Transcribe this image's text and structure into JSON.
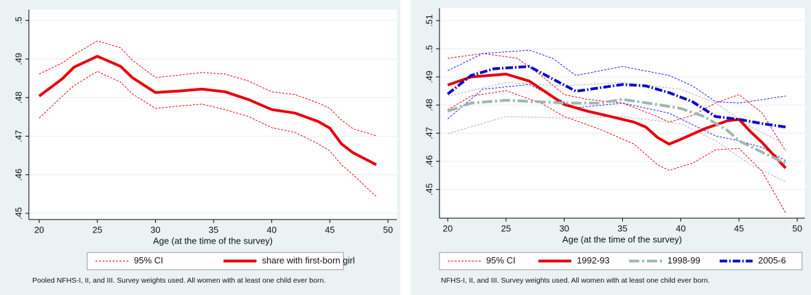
{
  "chart_data": [
    {
      "type": "line",
      "x_label": "Age (at the time of the survey)",
      "note": "Pooled NFHS-I, II, and III. Survey weights used. All women with at least one child ever born.",
      "ci_legend": "95% CI",
      "ci_color": "#e8000b",
      "xlim": [
        19.11,
        50.77
      ],
      "xticks": [
        20,
        25,
        30,
        35,
        40,
        45,
        50
      ],
      "ylim": [
        0.4484,
        0.5028
      ],
      "yticks": [
        {
          "value": 0.45,
          "label": ".45"
        },
        {
          "value": 0.46,
          "label": ".46"
        },
        {
          "value": 0.47,
          "label": ".47"
        },
        {
          "value": 0.48,
          "label": ".48"
        },
        {
          "value": 0.49,
          "label": ".49"
        },
        {
          "value": 0.5,
          "label": ".5"
        }
      ],
      "grid": true,
      "series": [
        {
          "role": "ci",
          "color": "#e8000b",
          "dash": "dashed",
          "x": [
            20,
            22,
            23,
            25,
            27,
            28,
            30,
            32,
            34,
            36,
            38,
            40,
            42,
            44,
            45,
            46,
            47,
            49
          ],
          "values": [
            0.4861,
            0.489,
            0.4911,
            0.4947,
            0.4929,
            0.4897,
            0.4852,
            0.4858,
            0.4865,
            0.4861,
            0.4843,
            0.4815,
            0.4808,
            0.4786,
            0.4772,
            0.4742,
            0.4719,
            0.4701
          ]
        },
        {
          "role": "ci",
          "color": "#e8000b",
          "dash": "dashed",
          "x": [
            20,
            22,
            23,
            25,
            27,
            28,
            30,
            32,
            34,
            36,
            38,
            40,
            42,
            44,
            45,
            46,
            47,
            49
          ],
          "values": [
            0.4747,
            0.4804,
            0.4831,
            0.4868,
            0.484,
            0.481,
            0.4772,
            0.4778,
            0.4783,
            0.4769,
            0.4751,
            0.4722,
            0.471,
            0.468,
            0.4662,
            0.4626,
            0.46,
            0.4543
          ]
        },
        {
          "role": "line",
          "name": "share with first-born girl",
          "color": "#e8000b",
          "dash": "solid",
          "x": [
            20,
            22,
            23,
            25,
            27,
            28,
            30,
            32,
            34,
            36,
            38,
            40,
            42,
            44,
            45,
            46,
            47,
            49
          ],
          "values": [
            0.4804,
            0.4849,
            0.4879,
            0.4907,
            0.4881,
            0.4852,
            0.4813,
            0.4817,
            0.4822,
            0.4815,
            0.4795,
            0.4769,
            0.476,
            0.4738,
            0.4721,
            0.468,
            0.4657,
            0.4626
          ]
        }
      ]
    },
    {
      "type": "line",
      "x_label": "Age (at the time of the survey)",
      "note": "NFHS-I, II, and III. Survey weights used. All women with at least one child ever born.",
      "ci_legend": "95% CI",
      "ci_color": "#e8000b",
      "xlim": [
        19.29,
        50.65
      ],
      "xticks": [
        20,
        25,
        30,
        35,
        40,
        45,
        50
      ],
      "ylim": [
        0.4398,
        0.5144
      ],
      "yticks": [
        {
          "value": 0.45,
          "label": ".45"
        },
        {
          "value": 0.46,
          "label": ".46"
        },
        {
          "value": 0.47,
          "label": ".47"
        },
        {
          "value": 0.48,
          "label": ".48"
        },
        {
          "value": 0.49,
          "label": ".49"
        },
        {
          "value": 0.5,
          "label": ".5"
        },
        {
          "value": 0.51,
          "label": ".51"
        }
      ],
      "grid": true,
      "series": [
        {
          "role": "ci",
          "color": "#e8000b",
          "dash": "dashed",
          "x": [
            20,
            23,
            26,
            28,
            30,
            32,
            35,
            38,
            39,
            41,
            43,
            45,
            47,
            49
          ],
          "values": [
            0.4966,
            0.4983,
            0.4966,
            0.4905,
            0.4837,
            0.482,
            0.4807,
            0.4759,
            0.4739,
            0.4763,
            0.4807,
            0.4837,
            0.4771,
            0.4637
          ]
        },
        {
          "role": "ci",
          "color": "#e8000b",
          "dash": "dashed",
          "x": [
            20,
            22,
            25,
            28,
            30,
            33,
            36,
            38,
            39,
            41,
            43,
            45,
            47,
            49
          ],
          "values": [
            0.4783,
            0.4832,
            0.4851,
            0.4807,
            0.4759,
            0.4715,
            0.4661,
            0.4588,
            0.4568,
            0.4593,
            0.4641,
            0.4646,
            0.4563,
            0.4417
          ]
        },
        {
          "role": "ci",
          "color": "#b0b0b0",
          "dash": "dashed",
          "x": [
            20,
            25,
            30,
            35,
            40,
            43,
            46,
            49
          ],
          "values": [
            0.4832,
            0.488,
            0.4868,
            0.488,
            0.4856,
            0.4807,
            0.4722,
            0.4661
          ]
        },
        {
          "role": "ci",
          "color": "#b0b0b0",
          "dash": "dashed",
          "x": [
            20,
            25,
            30,
            35,
            40,
            43,
            46,
            49
          ],
          "values": [
            0.4698,
            0.4759,
            0.4754,
            0.4759,
            0.4734,
            0.4673,
            0.4588,
            0.4527
          ]
        },
        {
          "role": "ci",
          "color": "#1a1aee",
          "dash": "dashed",
          "x": [
            20,
            23,
            27,
            29,
            31,
            35,
            39,
            41,
            43,
            45,
            49
          ],
          "values": [
            0.4922,
            0.4983,
            0.4995,
            0.4966,
            0.4905,
            0.4937,
            0.4905,
            0.4868,
            0.4812,
            0.4807,
            0.4832
          ]
        },
        {
          "role": "ci",
          "color": "#1a1aee",
          "dash": "dashed",
          "x": [
            20,
            23,
            27,
            31,
            35,
            39,
            43,
            45,
            47,
            49
          ],
          "values": [
            0.4751,
            0.4856,
            0.4873,
            0.479,
            0.4807,
            0.4771,
            0.469,
            0.4673,
            0.4649,
            0.4602
          ]
        },
        {
          "role": "line",
          "name": "1992-93",
          "color": "#e8000b",
          "dash": "solid",
          "x": [
            20,
            22,
            25,
            27,
            30,
            32,
            34,
            36,
            37,
            38,
            39,
            40,
            42,
            44,
            45,
            46,
            47,
            49
          ],
          "values": [
            0.4871,
            0.49,
            0.491,
            0.4885,
            0.4802,
            0.4778,
            0.4759,
            0.4739,
            0.4722,
            0.4685,
            0.4661,
            0.4678,
            0.4715,
            0.4744,
            0.4749,
            0.4705,
            0.4666,
            0.4576
          ]
        },
        {
          "role": "line",
          "name": "1998-99",
          "color": "#9fb8ad",
          "dash": "long-dash-dot",
          "x": [
            20,
            22,
            25,
            30,
            33,
            35,
            38,
            40,
            42,
            44,
            45,
            47,
            49
          ],
          "values": [
            0.4778,
            0.4807,
            0.4817,
            0.4807,
            0.4807,
            0.482,
            0.4802,
            0.4788,
            0.4759,
            0.471,
            0.4673,
            0.4632,
            0.4593
          ]
        },
        {
          "role": "line",
          "name": "2005-6",
          "color": "#0a0acc",
          "dash": "dash-dot",
          "x": [
            20,
            22,
            24,
            27,
            29,
            31,
            33,
            35,
            37,
            39,
            41,
            43,
            45,
            47,
            49
          ],
          "values": [
            0.4839,
            0.4905,
            0.4929,
            0.4937,
            0.4893,
            0.4849,
            0.4861,
            0.4873,
            0.4868,
            0.4844,
            0.4812,
            0.4759,
            0.4749,
            0.4734,
            0.4722
          ]
        }
      ]
    }
  ]
}
